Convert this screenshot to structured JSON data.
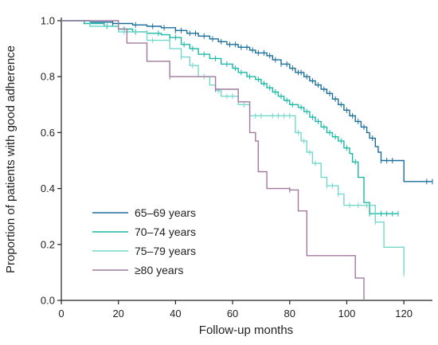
{
  "chart_data": {
    "type": "line",
    "chart_kind": "kaplan-meier step curves",
    "title": "",
    "xlabel": "Follow-up months",
    "ylabel": "Proportion of patients with good adherence",
    "xlim": [
      0,
      130
    ],
    "ylim": [
      0,
      1.0
    ],
    "x_ticks": [
      0,
      20,
      40,
      60,
      80,
      100,
      120
    ],
    "y_ticks": [
      0.0,
      0.2,
      0.4,
      0.6,
      0.8,
      1.0
    ],
    "x_tick_labels": [
      "0",
      "20",
      "40",
      "60",
      "80",
      "100",
      "120"
    ],
    "y_tick_labels": [
      "0.0",
      "0.2",
      "0.4",
      "0.6",
      "0.8",
      "1.0"
    ],
    "grid": false,
    "legend_position": "bottom-left",
    "series": [
      {
        "name": "65–69 years",
        "color": "#1a6e9a",
        "steps": [
          [
            0,
            1.0
          ],
          [
            10,
            0.995
          ],
          [
            18,
            0.99
          ],
          [
            25,
            0.985
          ],
          [
            30,
            0.98
          ],
          [
            35,
            0.975
          ],
          [
            40,
            0.965
          ],
          [
            44,
            0.955
          ],
          [
            48,
            0.945
          ],
          [
            52,
            0.935
          ],
          [
            55,
            0.925
          ],
          [
            58,
            0.915
          ],
          [
            62,
            0.905
          ],
          [
            66,
            0.895
          ],
          [
            68,
            0.885
          ],
          [
            72,
            0.875
          ],
          [
            74,
            0.86
          ],
          [
            77,
            0.845
          ],
          [
            80,
            0.83
          ],
          [
            82,
            0.815
          ],
          [
            85,
            0.8
          ],
          [
            87,
            0.785
          ],
          [
            89,
            0.77
          ],
          [
            91,
            0.755
          ],
          [
            93,
            0.74
          ],
          [
            95,
            0.72
          ],
          [
            97,
            0.7
          ],
          [
            99,
            0.68
          ],
          [
            101,
            0.66
          ],
          [
            103,
            0.64
          ],
          [
            105,
            0.62
          ],
          [
            107,
            0.6
          ],
          [
            108,
            0.58
          ],
          [
            110,
            0.55
          ],
          [
            111,
            0.53
          ],
          [
            112,
            0.5
          ],
          [
            117,
            0.5
          ],
          [
            120,
            0.425
          ],
          [
            130,
            0.425
          ]
        ],
        "censor_x": [
          18,
          26,
          32,
          36,
          40,
          42,
          45,
          47,
          50,
          53,
          56,
          59,
          61,
          63,
          65,
          67,
          69,
          71,
          73,
          75,
          77,
          79,
          81,
          83,
          84,
          86,
          88,
          90,
          92,
          94,
          96,
          98,
          100,
          102,
          104,
          106,
          109,
          112,
          114,
          116,
          128,
          130
        ]
      },
      {
        "name": "70–74 years",
        "color": "#1ab8a6",
        "steps": [
          [
            0,
            1.0
          ],
          [
            8,
            0.99
          ],
          [
            15,
            0.98
          ],
          [
            20,
            0.97
          ],
          [
            25,
            0.96
          ],
          [
            30,
            0.955
          ],
          [
            35,
            0.95
          ],
          [
            38,
            0.94
          ],
          [
            42,
            0.915
          ],
          [
            45,
            0.9
          ],
          [
            48,
            0.88
          ],
          [
            52,
            0.865
          ],
          [
            56,
            0.845
          ],
          [
            60,
            0.83
          ],
          [
            62,
            0.815
          ],
          [
            65,
            0.8
          ],
          [
            68,
            0.79
          ],
          [
            70,
            0.775
          ],
          [
            72,
            0.76
          ],
          [
            74,
            0.745
          ],
          [
            76,
            0.73
          ],
          [
            78,
            0.715
          ],
          [
            80,
            0.7
          ],
          [
            83,
            0.69
          ],
          [
            85,
            0.675
          ],
          [
            87,
            0.655
          ],
          [
            89,
            0.64
          ],
          [
            91,
            0.62
          ],
          [
            93,
            0.6
          ],
          [
            95,
            0.585
          ],
          [
            97,
            0.57
          ],
          [
            99,
            0.545
          ],
          [
            101,
            0.525
          ],
          [
            102,
            0.495
          ],
          [
            104,
            0.44
          ],
          [
            106,
            0.35
          ],
          [
            108,
            0.31
          ],
          [
            118,
            0.31
          ]
        ],
        "censor_x": [
          10,
          16,
          22,
          26,
          30,
          34,
          38,
          40,
          43,
          46,
          50,
          54,
          58,
          61,
          63,
          66,
          69,
          71,
          73,
          75,
          77,
          79,
          81,
          84,
          86,
          88,
          90,
          92,
          94,
          96,
          98,
          100,
          103,
          108,
          110,
          112,
          114,
          116,
          118
        ]
      },
      {
        "name": "75–79 years",
        "color": "#74d8cc",
        "steps": [
          [
            0,
            1.0
          ],
          [
            10,
            0.98
          ],
          [
            20,
            0.96
          ],
          [
            30,
            0.93
          ],
          [
            38,
            0.9
          ],
          [
            42,
            0.87
          ],
          [
            45,
            0.84
          ],
          [
            48,
            0.8
          ],
          [
            52,
            0.77
          ],
          [
            54,
            0.75
          ],
          [
            56,
            0.73
          ],
          [
            62,
            0.7
          ],
          [
            66,
            0.66
          ],
          [
            72,
            0.66
          ],
          [
            79,
            0.66
          ],
          [
            82,
            0.6
          ],
          [
            84,
            0.57
          ],
          [
            86,
            0.53
          ],
          [
            88,
            0.49
          ],
          [
            91,
            0.44
          ],
          [
            93,
            0.41
          ],
          [
            97,
            0.38
          ],
          [
            99,
            0.34
          ],
          [
            106,
            0.34
          ],
          [
            110,
            0.28
          ],
          [
            113,
            0.19
          ],
          [
            120,
            0.095
          ]
        ],
        "censor_x": [
          22,
          32,
          42,
          46,
          50,
          55,
          58,
          60,
          64,
          68,
          70,
          74,
          76,
          78,
          80,
          83,
          85,
          87,
          89,
          93,
          95,
          97,
          101,
          104,
          107,
          110,
          120
        ]
      },
      {
        "name": "≥80 years",
        "color": "#a07a9e",
        "steps": [
          [
            0,
            1.0
          ],
          [
            20,
            0.97
          ],
          [
            23,
            0.92
          ],
          [
            30,
            0.855
          ],
          [
            38,
            0.8
          ],
          [
            46,
            0.8
          ],
          [
            54,
            0.755
          ],
          [
            62,
            0.71
          ],
          [
            66,
            0.6
          ],
          [
            68,
            0.57
          ],
          [
            69,
            0.46
          ],
          [
            72,
            0.4
          ],
          [
            80,
            0.395
          ],
          [
            83,
            0.32
          ],
          [
            86,
            0.16
          ],
          [
            98,
            0.16
          ],
          [
            103,
            0.08
          ],
          [
            106,
            0.08
          ],
          [
            106,
            0.0
          ]
        ],
        "censor_x": [
          38,
          54,
          80
        ]
      }
    ]
  }
}
